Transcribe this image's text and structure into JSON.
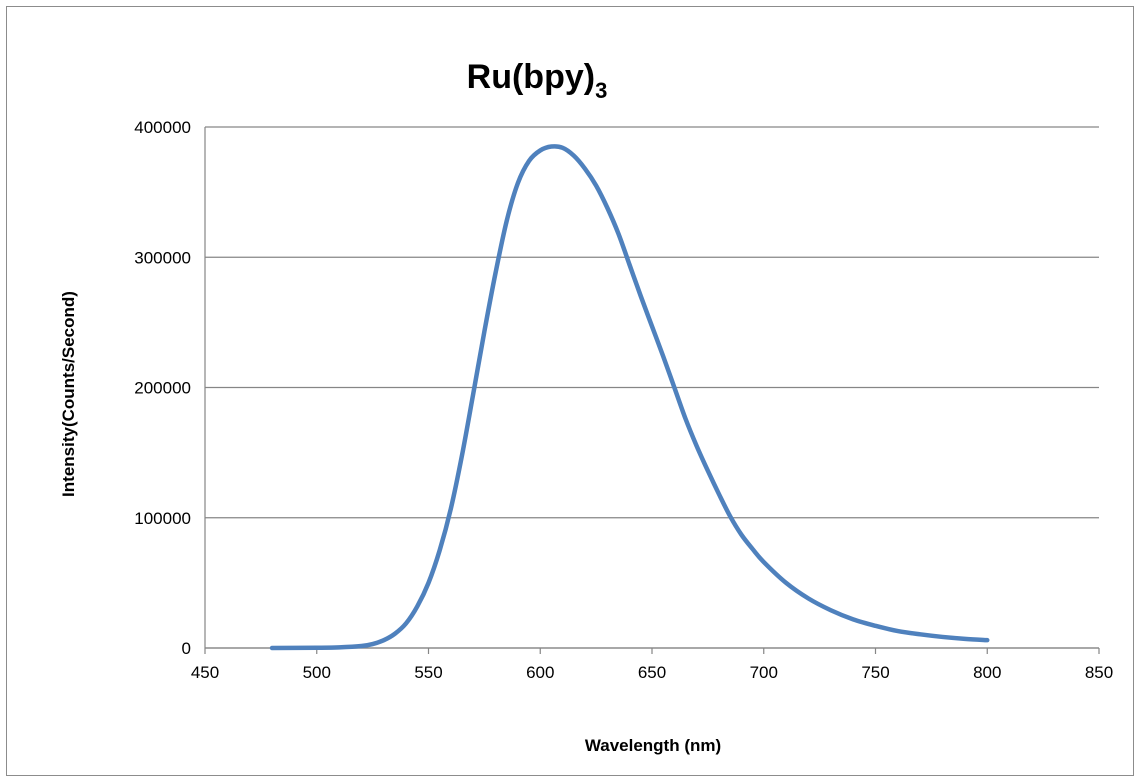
{
  "chart_data": {
    "type": "line",
    "title": "Ru(bpy)",
    "title_subscript": "3",
    "xlabel": "Wavelength (nm)",
    "ylabel": "Intensity(Counts/Second)",
    "xlim": [
      450,
      850
    ],
    "ylim": [
      0,
      400000
    ],
    "xticks": [
      "450",
      "500",
      "550",
      "600",
      "650",
      "700",
      "750",
      "800",
      "850"
    ],
    "yticks": [
      "0",
      "100000",
      "200000",
      "300000",
      "400000"
    ],
    "grid": "horizontal",
    "legend": "none",
    "series_color": "#4f81bd",
    "series": [
      {
        "x": [
          480,
          500,
          510,
          520,
          525,
          530,
          535,
          540,
          545,
          550,
          555,
          560,
          565,
          570,
          575,
          580,
          585,
          590,
          595,
          600,
          605,
          610,
          615,
          620,
          625,
          630,
          635,
          640,
          645,
          650,
          655,
          660,
          665,
          670,
          675,
          680,
          685,
          690,
          695,
          700,
          710,
          720,
          730,
          740,
          750,
          760,
          770,
          780,
          790,
          800
        ],
        "y": [
          0,
          200,
          500,
          1500,
          3000,
          6000,
          11000,
          19000,
          32000,
          50000,
          75000,
          107000,
          148000,
          195000,
          243000,
          288000,
          328000,
          357000,
          374000,
          382000,
          385000,
          384000,
          378000,
          368000,
          355000,
          338000,
          318000,
          294000,
          270000,
          247000,
          224000,
          200000,
          176000,
          155000,
          136000,
          118000,
          101000,
          87000,
          76000,
          66000,
          50000,
          38000,
          29000,
          22000,
          17000,
          13000,
          10500,
          8500,
          7000,
          6000
        ]
      }
    ]
  }
}
